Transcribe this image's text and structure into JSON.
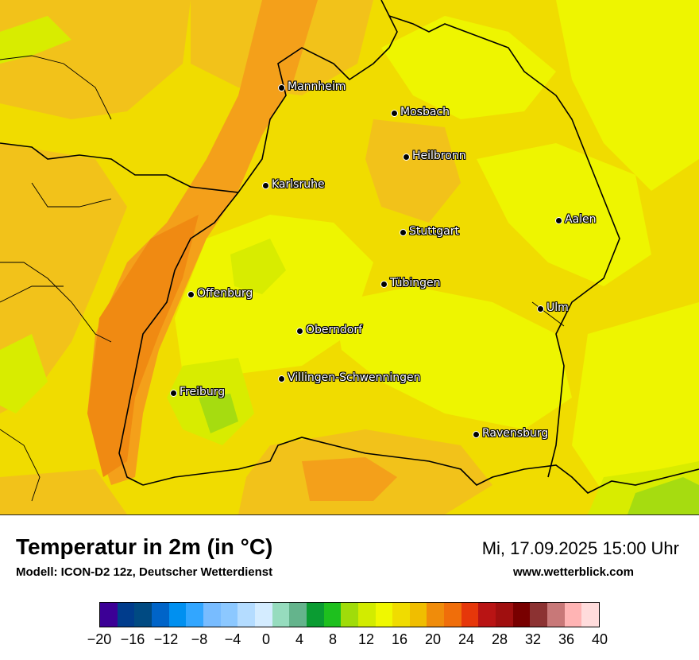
{
  "title": "Temperatur in 2m (in °C)",
  "model": "Modell: ICON-D2 12z, Deutscher Wetterdienst",
  "datetime": "Mi, 17.09.2025 15:00 Uhr",
  "site": "www.wetterblick.com",
  "cities": [
    {
      "name": "Mannheim"
    },
    {
      "name": "Mosbach"
    },
    {
      "name": "Heilbronn"
    },
    {
      "name": "Karlsruhe"
    },
    {
      "name": "Aalen"
    },
    {
      "name": "Stuttgart"
    },
    {
      "name": "Tübingen"
    },
    {
      "name": "Offenburg"
    },
    {
      "name": "Ulm"
    },
    {
      "name": "Oberndorf"
    },
    {
      "name": "Villingen-Schwenningen"
    },
    {
      "name": "Freiburg"
    },
    {
      "name": "Ravensburg"
    }
  ],
  "colors": {
    "field_warm": "#f2c21a",
    "field_hot": "#f4a01a",
    "field_hotter": "#f08a12",
    "field_mild": "#eef500",
    "field_cool": "#d8ec00",
    "field_cooler": "#a6dc10"
  },
  "legend": {
    "colors": [
      "#3c0096",
      "#003c8c",
      "#004a82",
      "#0064c8",
      "#0090f0",
      "#32a6ff",
      "#78bcff",
      "#8cc8ff",
      "#b4dcff",
      "#d4ecff",
      "#96dcbe",
      "#64b48c",
      "#0a9c32",
      "#1ec01e",
      "#a0dc0a",
      "#d2ec00",
      "#f0f800",
      "#f0dc00",
      "#f0be00",
      "#f08c0a",
      "#f06e0a",
      "#e6370a",
      "#b91414",
      "#a00f0f",
      "#780000",
      "#8c3232",
      "#c87878",
      "#ffb4b4",
      "#ffdcdc"
    ],
    "ticks": [
      "−20",
      "−16",
      "−12",
      "−8",
      "−4",
      "0",
      "4",
      "8",
      "12",
      "16",
      "20",
      "24",
      "28",
      "32",
      "36",
      "40"
    ]
  }
}
